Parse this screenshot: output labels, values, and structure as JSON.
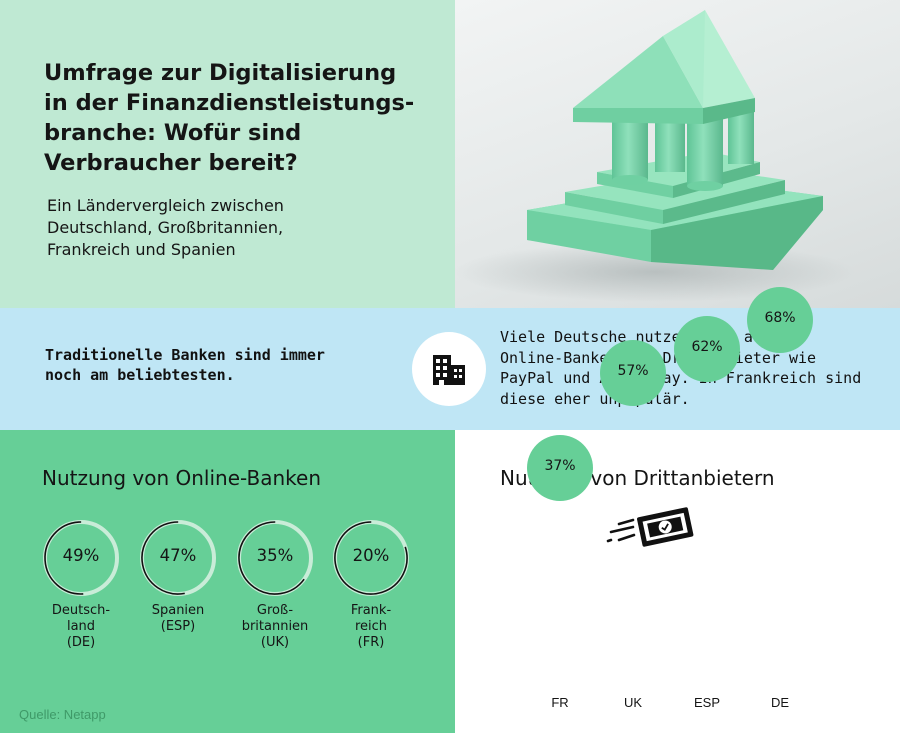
{
  "header": {
    "title": "Umfrage zur Digitalisierung\nin der Finanzdienstleistungs-\nbranche: Wofür sind\nVerbraucher bereit?",
    "subtitle": "Ein Ländervergleich zwischen\nDeutschland, Großbritannien,\nFrankreich und Spanien"
  },
  "info_band": {
    "left_text": "Traditionelle Banken sind immer\nnoch am beliebtesten.",
    "right_text": "Viele Deutsche nutzen aber auch\nOnline-Banken und Drittanbieter wie\nPayPal und Apple Pay. In Frankreich sind\ndiese eher unpopulär."
  },
  "colors": {
    "mint_light": "#bfe9d3",
    "green": "#66cf97",
    "light_blue": "#bfe6f5",
    "ring_track": "#c9ecd8",
    "text": "#151515"
  },
  "icons": {
    "band_icon": "office-building-icon",
    "drittanbieter_icon": "money-transfer-icon"
  },
  "source": "Quelle: Netapp",
  "chart_data": [
    {
      "type": "donut",
      "title": "Nutzung von Online-Banken",
      "unit": "%",
      "categories": [
        "Deutsch-\nland\n(DE)",
        "Spanien\n(ESP)",
        "Groß-\nbritannien\n(UK)",
        "Frank-\nreich\n(FR)"
      ],
      "values": [
        49,
        47,
        35,
        20
      ],
      "labels": [
        "49%",
        "47%",
        "35%",
        "20%"
      ]
    },
    {
      "type": "scatter",
      "title": "Nutzung von Drittanbietern",
      "unit": "%",
      "categories": [
        "FR",
        "UK",
        "ESP",
        "DE"
      ],
      "values": [
        37,
        57,
        62,
        68
      ],
      "labels": [
        "37%",
        "57%",
        "62%",
        "68%"
      ]
    }
  ]
}
